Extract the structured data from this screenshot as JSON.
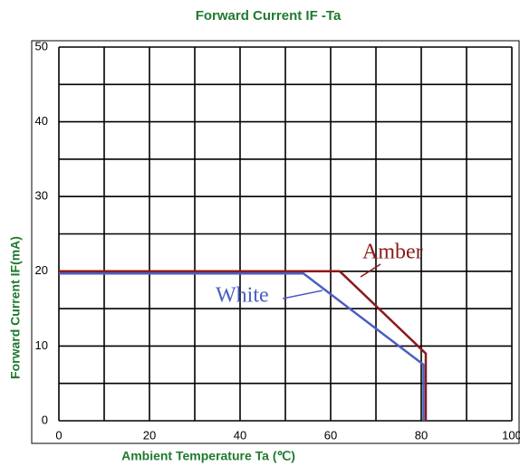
{
  "chart_data": {
    "type": "line",
    "title": "Forward Current IF -Ta",
    "x_label": "Ambient Temperature Ta (℃)",
    "y_label": "Forward Current IF(mA)",
    "xlim": [
      0,
      100
    ],
    "ylim": [
      0,
      50
    ],
    "xticks": [
      0,
      20,
      40,
      60,
      80,
      100
    ],
    "xminor": [
      10,
      30,
      50,
      70,
      90
    ],
    "yticks": [
      0,
      10,
      20,
      30,
      40,
      50
    ],
    "yminor": [
      5,
      15,
      25,
      35,
      45
    ],
    "grid": true,
    "series": [
      {
        "name": "Amber",
        "color": "#8b1a1a",
        "x": [
          0,
          62,
          81,
          81
        ],
        "values": [
          20,
          20,
          9,
          0
        ]
      },
      {
        "name": "White",
        "color": "#4a5fc1",
        "x": [
          0,
          54,
          80.5,
          80.5
        ],
        "values": [
          19.7,
          19.7,
          7.5,
          0
        ]
      }
    ]
  }
}
